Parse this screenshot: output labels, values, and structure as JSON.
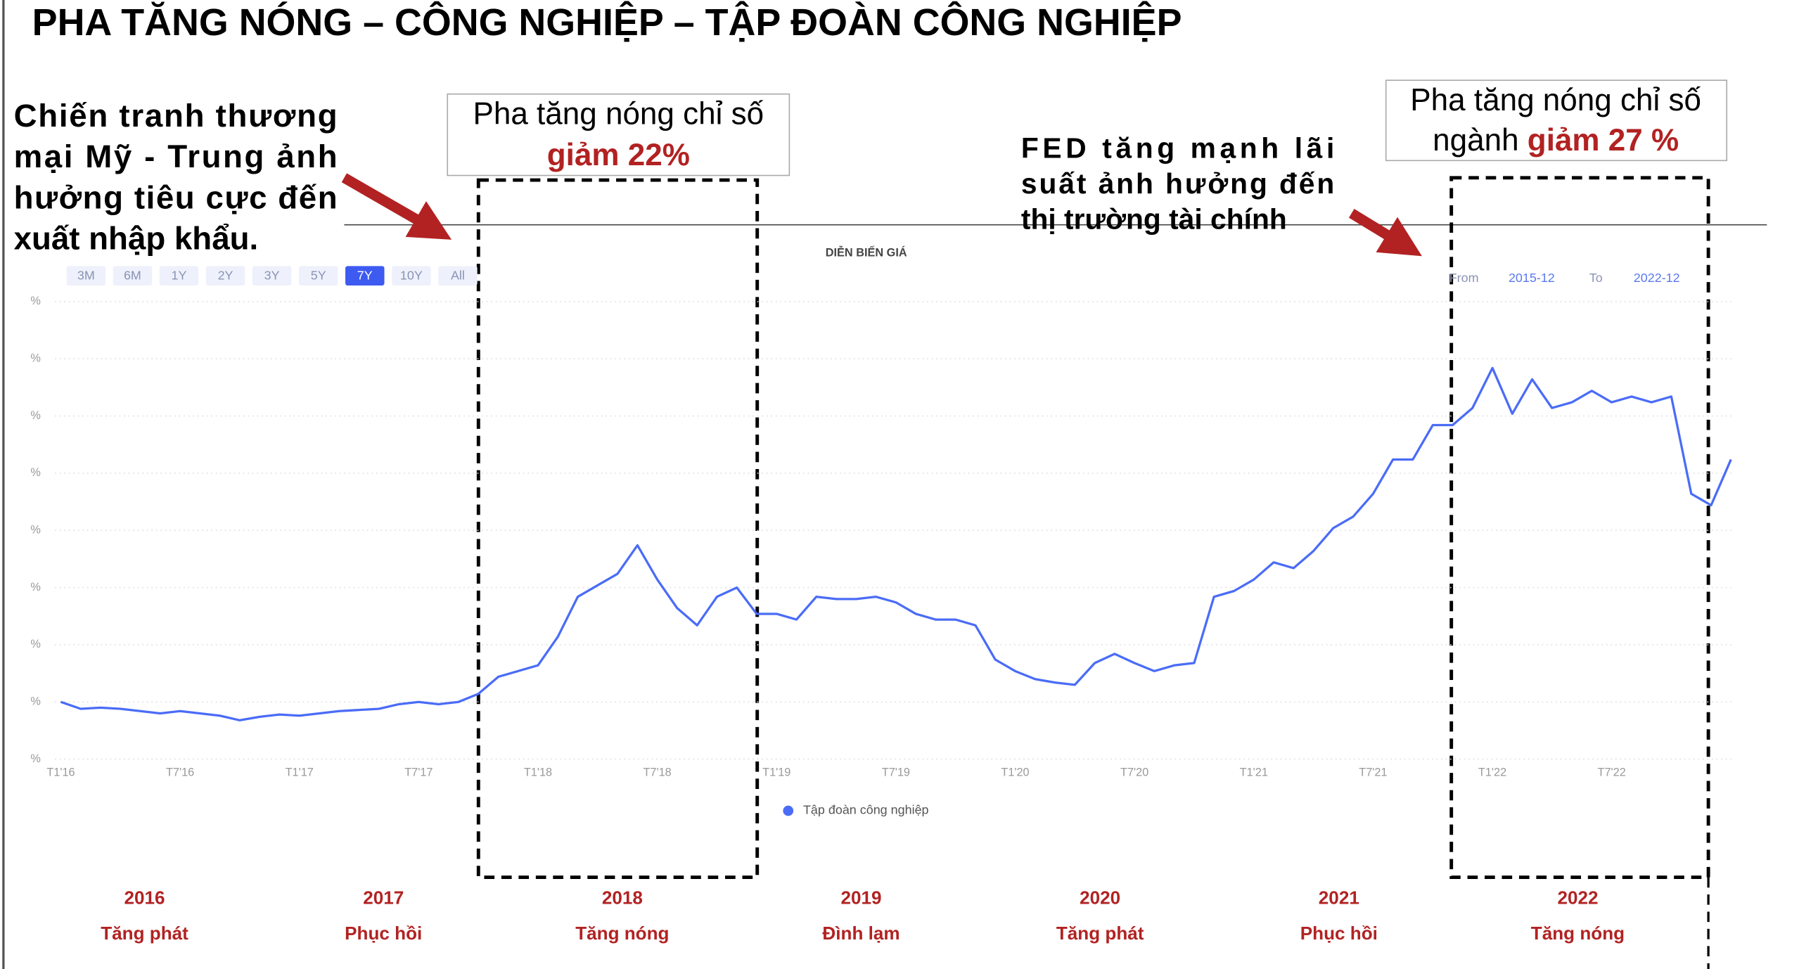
{
  "slide": {
    "title": "PHA TĂNG NÓNG – CÔNG NGHIỆP – TẬP ĐOÀN CÔNG NGHIỆP",
    "left_note": [
      "Chiến tranh thương",
      "mại Mỹ - Trung ảnh",
      "hưởng tiêu cực đến",
      "xuất nhập khẩu."
    ],
    "box1": {
      "line1": "Pha tăng nóng chỉ số",
      "highlight": "giảm 22%"
    },
    "box2": {
      "line1": "Pha tăng nóng chỉ số",
      "prefix": "ngành ",
      "highlight": "giảm 27 %"
    },
    "fed_note": [
      "FED tăng mạnh lãi",
      "suất ảnh hưởng đến",
      "thị trường tài chính"
    ],
    "years": [
      "2016",
      "2017",
      "2018",
      "2019",
      "2020",
      "2021",
      "2022"
    ],
    "phases": [
      "Tăng phát",
      "Phục hồi",
      "Tăng nóng",
      "Đình lạm",
      "Tăng phát",
      "Phục hồi",
      "Tăng nóng"
    ]
  },
  "chart_data": {
    "type": "line",
    "title": "DIỄN BIẾN GIÁ",
    "range_buttons": [
      "3M",
      "6M",
      "1Y",
      "2Y",
      "3Y",
      "5Y",
      "7Y",
      "10Y",
      "All"
    ],
    "selected_range": "7Y",
    "range": {
      "from_label": "From",
      "from": "2015-12",
      "to_label": "To",
      "to": "2022-12"
    },
    "categories": [
      "T1'16",
      null,
      null,
      null,
      null,
      null,
      "T7'16",
      null,
      null,
      null,
      null,
      null,
      "T1'17",
      null,
      null,
      null,
      null,
      null,
      "T7'17",
      null,
      null,
      null,
      null,
      null,
      "T1'18",
      null,
      null,
      null,
      null,
      null,
      "T7'18",
      null,
      null,
      null,
      null,
      null,
      "T1'19",
      null,
      null,
      null,
      null,
      null,
      "T7'19",
      null,
      null,
      null,
      null,
      null,
      "T1'20",
      null,
      null,
      null,
      null,
      null,
      "T7'20",
      null,
      null,
      null,
      null,
      null,
      "T1'21",
      null,
      null,
      null,
      null,
      null,
      "T7'21",
      null,
      null,
      null,
      null,
      null,
      "T1'22",
      null,
      null,
      null,
      null,
      null,
      "T7'22",
      null,
      null,
      null,
      null,
      null,
      null
    ],
    "series": [
      {
        "name": "Tập đoàn công nghiệp",
        "color": "#4a6cf7",
        "values": [
          1.0,
          0.88,
          0.9,
          0.88,
          0.84,
          0.8,
          0.84,
          0.8,
          0.76,
          0.68,
          0.74,
          0.78,
          0.76,
          0.8,
          0.84,
          0.86,
          0.88,
          0.96,
          1.0,
          0.96,
          1.0,
          1.14,
          1.44,
          1.54,
          1.64,
          2.14,
          2.84,
          3.04,
          3.24,
          3.74,
          3.14,
          2.64,
          2.34,
          2.84,
          3.0,
          2.54,
          2.54,
          2.44,
          2.84,
          2.8,
          2.8,
          2.84,
          2.74,
          2.54,
          2.44,
          2.44,
          2.34,
          1.74,
          1.54,
          1.4,
          1.34,
          1.3,
          1.68,
          1.84,
          1.68,
          1.54,
          1.64,
          1.68,
          2.84,
          2.94,
          3.14,
          3.44,
          3.34,
          3.64,
          4.04,
          4.24,
          4.64,
          5.24,
          5.24,
          5.84,
          5.84,
          6.14,
          6.84,
          6.04,
          6.64,
          6.14,
          6.24,
          6.44,
          6.24,
          6.34,
          6.24,
          6.34,
          4.64,
          4.44,
          5.24
        ]
      }
    ],
    "ylim": [
      0,
      8
    ],
    "yticks": [
      {
        "value": 0,
        "label": "%"
      },
      {
        "value": 1,
        "label": "%"
      },
      {
        "value": 2,
        "label": "%"
      },
      {
        "value": 3,
        "label": "%"
      },
      {
        "value": 4,
        "label": "%"
      },
      {
        "value": 5,
        "label": "%"
      },
      {
        "value": 6,
        "label": "%"
      },
      {
        "value": 7,
        "label": "%"
      },
      {
        "value": 8,
        "label": "%"
      }
    ],
    "grid": true,
    "legend": "bottom"
  }
}
